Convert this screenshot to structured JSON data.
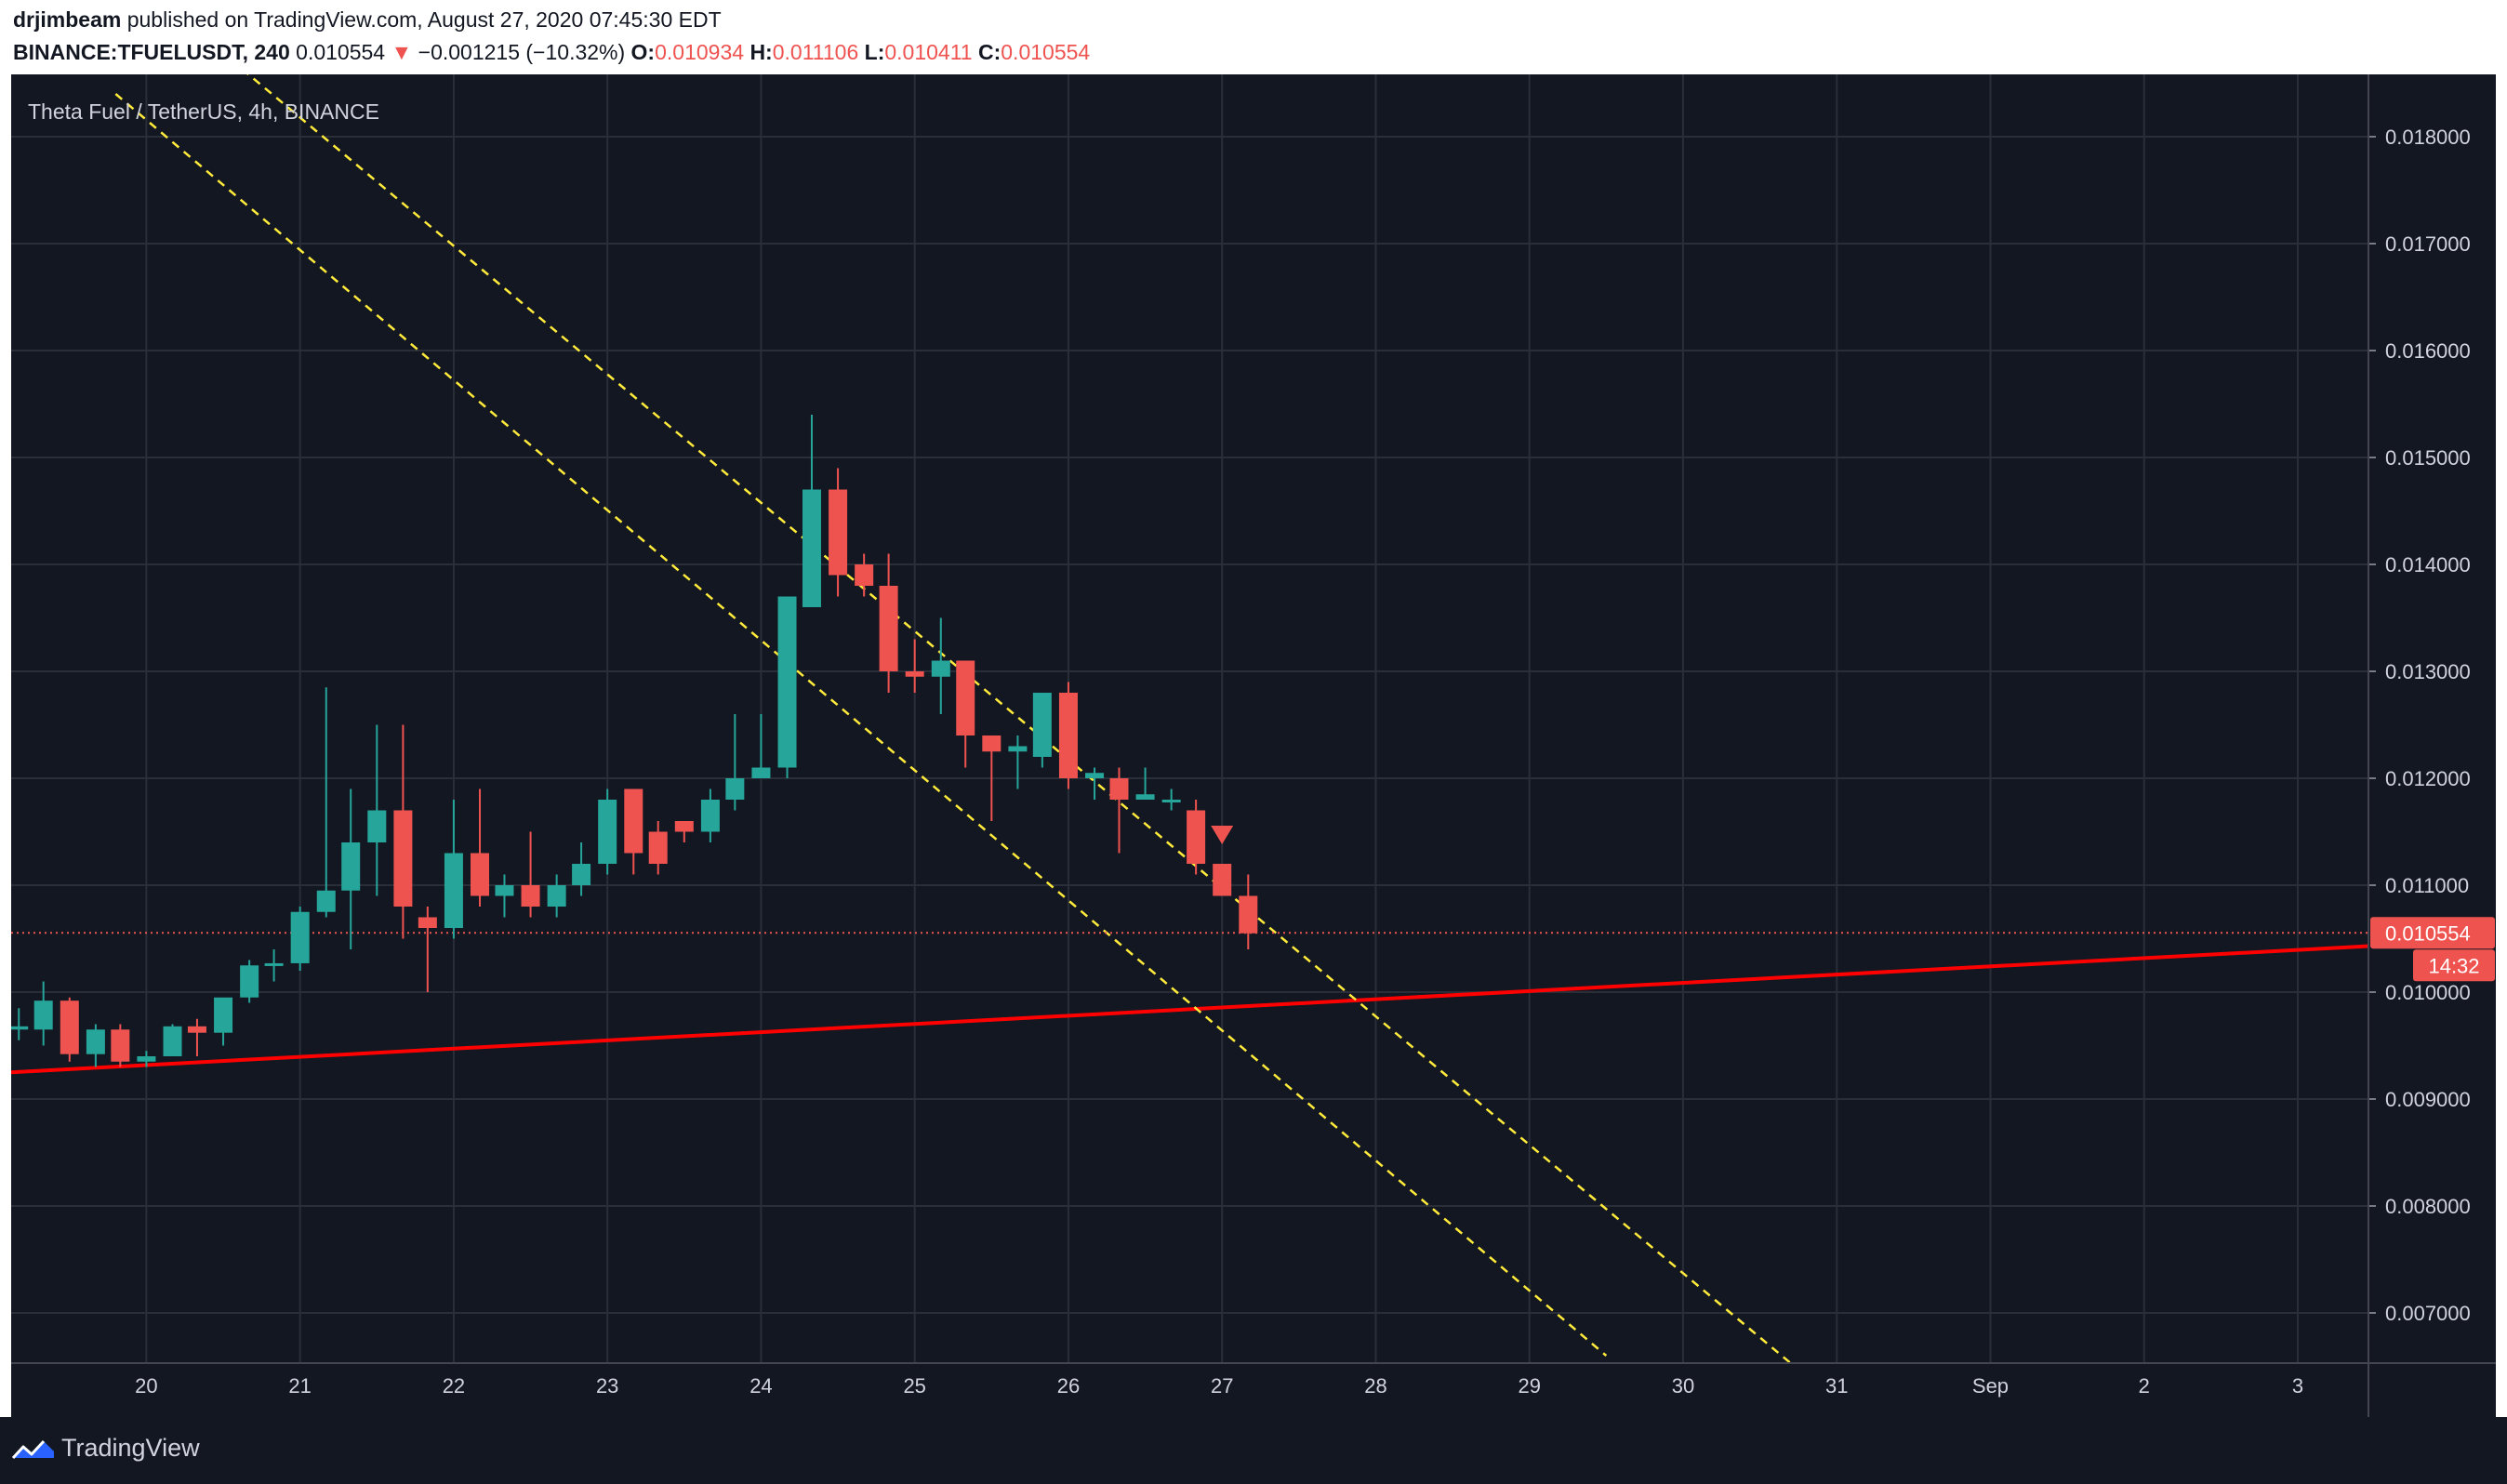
{
  "header": {
    "author": "drjimbeam",
    "published_text": "published on TradingView.com, August 27, 2020 07:45:30 EDT",
    "symbol": "BINANCE:TFUELUSDT, 240",
    "last_price": "0.010554",
    "change_arrow": "▼",
    "change": "−0.001215 (−10.32%)",
    "open_label": "O:",
    "open": "0.010934",
    "high_label": "H:",
    "high": "0.011106",
    "low_label": "L:",
    "low": "0.010411",
    "close_label": "C:",
    "close": "0.010554"
  },
  "footer": {
    "brand": "TradingView",
    "logo_icon": "tradingview-logo-icon"
  },
  "colors": {
    "background": "#131722",
    "grid": "#2a2e39",
    "text": "#d1d4dc",
    "up": "#26a69a",
    "down": "#ef5350",
    "trendline": "#ff0000",
    "channel": "#ffeb3b"
  },
  "chart_data": {
    "type": "candlestick",
    "title": "Theta Fuel / TetherUS, 4h, BINANCE",
    "ylim": [
      0.0065,
      0.0185
    ],
    "y_ticks": [
      "0.018000",
      "0.017000",
      "0.016000",
      "0.015000",
      "0.014000",
      "0.013000",
      "0.012000",
      "0.011000",
      "0.010000",
      "0.009000",
      "0.008000",
      "0.007000"
    ],
    "y_tick_values": [
      0.018,
      0.017,
      0.016,
      0.015,
      0.014,
      0.013,
      0.012,
      0.011,
      0.01,
      0.009,
      0.008,
      0.007
    ],
    "x_ticks": [
      "20",
      "21",
      "22",
      "23",
      "24",
      "25",
      "26",
      "27",
      "28",
      "29",
      "30",
      "31",
      "Sep",
      "2",
      "3"
    ],
    "x_tick_days": [
      20,
      21,
      22,
      23,
      24,
      25,
      26,
      27,
      28,
      29,
      30,
      31,
      32,
      33,
      34
    ],
    "xlim_days": [
      19.12,
      34.46
    ],
    "candles": [
      {
        "t": 19.17,
        "o": 0.00965,
        "h": 0.00985,
        "l": 0.00955,
        "c": 0.00968
      },
      {
        "t": 19.33,
        "o": 0.00965,
        "h": 0.0101,
        "l": 0.0095,
        "c": 0.00992
      },
      {
        "t": 19.5,
        "o": 0.00992,
        "h": 0.00995,
        "l": 0.00935,
        "c": 0.00942
      },
      {
        "t": 19.67,
        "o": 0.00942,
        "h": 0.0097,
        "l": 0.0093,
        "c": 0.00965
      },
      {
        "t": 19.83,
        "o": 0.00965,
        "h": 0.0097,
        "l": 0.0093,
        "c": 0.00935
      },
      {
        "t": 20.0,
        "o": 0.00935,
        "h": 0.00945,
        "l": 0.0093,
        "c": 0.0094
      },
      {
        "t": 20.17,
        "o": 0.0094,
        "h": 0.0097,
        "l": 0.0094,
        "c": 0.00968
      },
      {
        "t": 20.33,
        "o": 0.00968,
        "h": 0.00975,
        "l": 0.0094,
        "c": 0.00962
      },
      {
        "t": 20.5,
        "o": 0.00962,
        "h": 0.0099,
        "l": 0.0095,
        "c": 0.00995
      },
      {
        "t": 20.67,
        "o": 0.00995,
        "h": 0.0103,
        "l": 0.0099,
        "c": 0.01025
      },
      {
        "t": 20.83,
        "o": 0.01025,
        "h": 0.0104,
        "l": 0.0101,
        "c": 0.01027
      },
      {
        "t": 21.0,
        "o": 0.01027,
        "h": 0.0108,
        "l": 0.0102,
        "c": 0.01075
      },
      {
        "t": 21.17,
        "o": 0.01075,
        "h": 0.01285,
        "l": 0.0107,
        "c": 0.01095
      },
      {
        "t": 21.33,
        "o": 0.01095,
        "h": 0.0119,
        "l": 0.0104,
        "c": 0.0114
      },
      {
        "t": 21.5,
        "o": 0.0114,
        "h": 0.0125,
        "l": 0.0109,
        "c": 0.0117
      },
      {
        "t": 21.67,
        "o": 0.0117,
        "h": 0.0125,
        "l": 0.0105,
        "c": 0.0108
      },
      {
        "t": 21.83,
        "o": 0.0107,
        "h": 0.0108,
        "l": 0.01,
        "c": 0.0106
      },
      {
        "t": 22.0,
        "o": 0.0106,
        "h": 0.0118,
        "l": 0.0105,
        "c": 0.0113
      },
      {
        "t": 22.17,
        "o": 0.0113,
        "h": 0.0119,
        "l": 0.0108,
        "c": 0.0109
      },
      {
        "t": 22.33,
        "o": 0.0109,
        "h": 0.0111,
        "l": 0.0107,
        "c": 0.011
      },
      {
        "t": 22.5,
        "o": 0.011,
        "h": 0.0115,
        "l": 0.0107,
        "c": 0.0108
      },
      {
        "t": 22.67,
        "o": 0.0108,
        "h": 0.0111,
        "l": 0.0107,
        "c": 0.011
      },
      {
        "t": 22.83,
        "o": 0.011,
        "h": 0.0114,
        "l": 0.0109,
        "c": 0.0112
      },
      {
        "t": 23.0,
        "o": 0.0112,
        "h": 0.0119,
        "l": 0.0111,
        "c": 0.0118
      },
      {
        "t": 23.17,
        "o": 0.0119,
        "h": 0.0119,
        "l": 0.0111,
        "c": 0.0113
      },
      {
        "t": 23.33,
        "o": 0.0115,
        "h": 0.0116,
        "l": 0.0111,
        "c": 0.0112
      },
      {
        "t": 23.5,
        "o": 0.0116,
        "h": 0.0116,
        "l": 0.0114,
        "c": 0.0115
      },
      {
        "t": 23.67,
        "o": 0.0115,
        "h": 0.0119,
        "l": 0.0114,
        "c": 0.0118
      },
      {
        "t": 23.83,
        "o": 0.0118,
        "h": 0.0126,
        "l": 0.0117,
        "c": 0.012
      },
      {
        "t": 24.0,
        "o": 0.012,
        "h": 0.0126,
        "l": 0.012,
        "c": 0.0121
      },
      {
        "t": 24.17,
        "o": 0.0121,
        "h": 0.0137,
        "l": 0.012,
        "c": 0.0137
      },
      {
        "t": 24.33,
        "o": 0.0136,
        "h": 0.0154,
        "l": 0.0136,
        "c": 0.0147
      },
      {
        "t": 24.5,
        "o": 0.0147,
        "h": 0.0149,
        "l": 0.0137,
        "c": 0.0139
      },
      {
        "t": 24.67,
        "o": 0.014,
        "h": 0.0141,
        "l": 0.0137,
        "c": 0.0138
      },
      {
        "t": 24.83,
        "o": 0.0138,
        "h": 0.0141,
        "l": 0.0128,
        "c": 0.013
      },
      {
        "t": 25.0,
        "o": 0.013,
        "h": 0.0133,
        "l": 0.0128,
        "c": 0.01295
      },
      {
        "t": 25.17,
        "o": 0.01295,
        "h": 0.0135,
        "l": 0.0126,
        "c": 0.0131
      },
      {
        "t": 25.33,
        "o": 0.0131,
        "h": 0.0131,
        "l": 0.0121,
        "c": 0.0124
      },
      {
        "t": 25.5,
        "o": 0.0124,
        "h": 0.0124,
        "l": 0.0116,
        "c": 0.01225
      },
      {
        "t": 25.67,
        "o": 0.01225,
        "h": 0.0124,
        "l": 0.0119,
        "c": 0.0123
      },
      {
        "t": 25.83,
        "o": 0.0122,
        "h": 0.0128,
        "l": 0.0121,
        "c": 0.0128
      },
      {
        "t": 26.0,
        "o": 0.0128,
        "h": 0.0129,
        "l": 0.0119,
        "c": 0.012
      },
      {
        "t": 26.17,
        "o": 0.012,
        "h": 0.0121,
        "l": 0.0118,
        "c": 0.01205
      },
      {
        "t": 26.33,
        "o": 0.012,
        "h": 0.0121,
        "l": 0.0113,
        "c": 0.0118
      },
      {
        "t": 26.5,
        "o": 0.0118,
        "h": 0.0121,
        "l": 0.0118,
        "c": 0.01185
      },
      {
        "t": 26.67,
        "o": 0.0118,
        "h": 0.0119,
        "l": 0.0117,
        "c": 0.0118
      },
      {
        "t": 26.83,
        "o": 0.0117,
        "h": 0.0118,
        "l": 0.0111,
        "c": 0.0112
      },
      {
        "t": 27.0,
        "o": 0.0112,
        "h": 0.0112,
        "l": 0.0109,
        "c": 0.0109
      },
      {
        "t": 27.17,
        "o": 0.0109,
        "h": 0.0111,
        "l": 0.0104,
        "c": 0.01055
      }
    ],
    "last_price_label": "0.010554",
    "countdown": "14:32",
    "last_price": 0.010554,
    "support_line": {
      "from": [
        19.12,
        0.00925
      ],
      "to": [
        34.46,
        0.01043
      ]
    },
    "channel_upper": {
      "from": [
        20.4,
        0.0189
      ],
      "to": [
        30.7,
        0.0065
      ]
    },
    "channel_lower": {
      "from": [
        19.8,
        0.0184
      ],
      "to": [
        29.5,
        0.0066
      ]
    },
    "sell_marker": {
      "t": 27.0,
      "price": 0.01147
    }
  }
}
